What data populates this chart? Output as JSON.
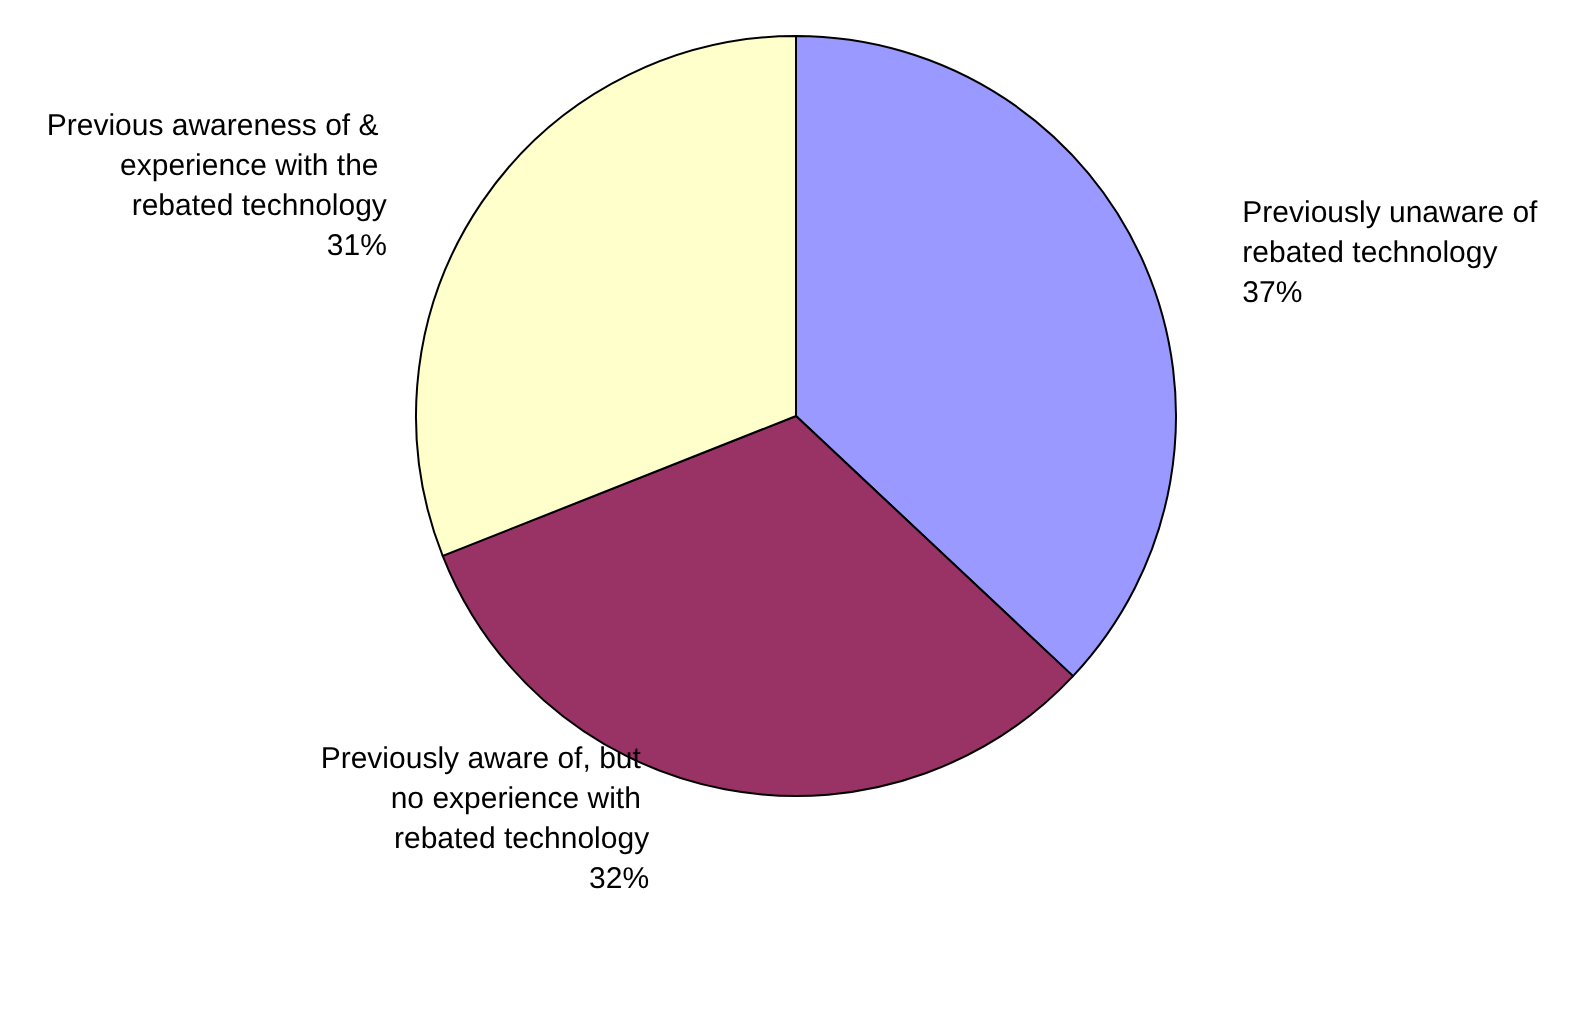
{
  "chart_data": {
    "type": "pie",
    "categories": [
      "Previously unaware of rebated technology",
      "Previously aware of, but no experience with rebated technology",
      "Previous awareness of & experience with the rebated technology"
    ],
    "values": [
      37,
      32,
      31
    ],
    "value_labels": [
      "37%",
      "32%",
      "31%"
    ],
    "colors": [
      "#9999ff",
      "#993366",
      "#ffffcc"
    ]
  }
}
